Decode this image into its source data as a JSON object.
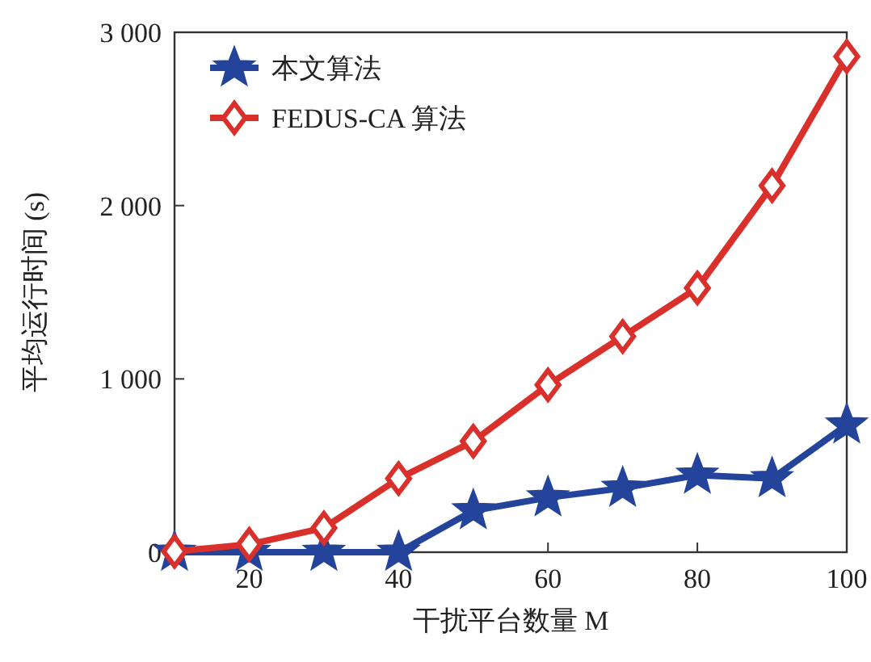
{
  "chart_data": {
    "type": "line",
    "xlabel": "干扰平台数量 M",
    "ylabel": "平均运行时间 (s)",
    "x": [
      10,
      20,
      30,
      40,
      50,
      60,
      70,
      80,
      90,
      100
    ],
    "series": [
      {
        "name": "本文算法",
        "color": "#23449a",
        "marker": "star",
        "values": [
          0,
          0,
          0,
          0,
          240,
          315,
          370,
          445,
          425,
          735
        ]
      },
      {
        "name": "FEDUS-CA 算法",
        "color": "#d9302c",
        "marker": "diamond",
        "values": [
          5,
          45,
          140,
          425,
          640,
          965,
          1245,
          1525,
          2115,
          2860
        ]
      }
    ],
    "xlim": [
      10,
      100
    ],
    "xticks": [
      20,
      40,
      60,
      80,
      100
    ],
    "ylim": [
      0,
      3000
    ],
    "yticks": [
      {
        "value": 0,
        "label": "0"
      },
      {
        "value": 1000,
        "label": "1 000"
      },
      {
        "value": 2000,
        "label": "2 000"
      },
      {
        "value": 3000,
        "label": "3 000"
      }
    ],
    "grid": false,
    "legend": "top left",
    "line_style": "solid"
  }
}
